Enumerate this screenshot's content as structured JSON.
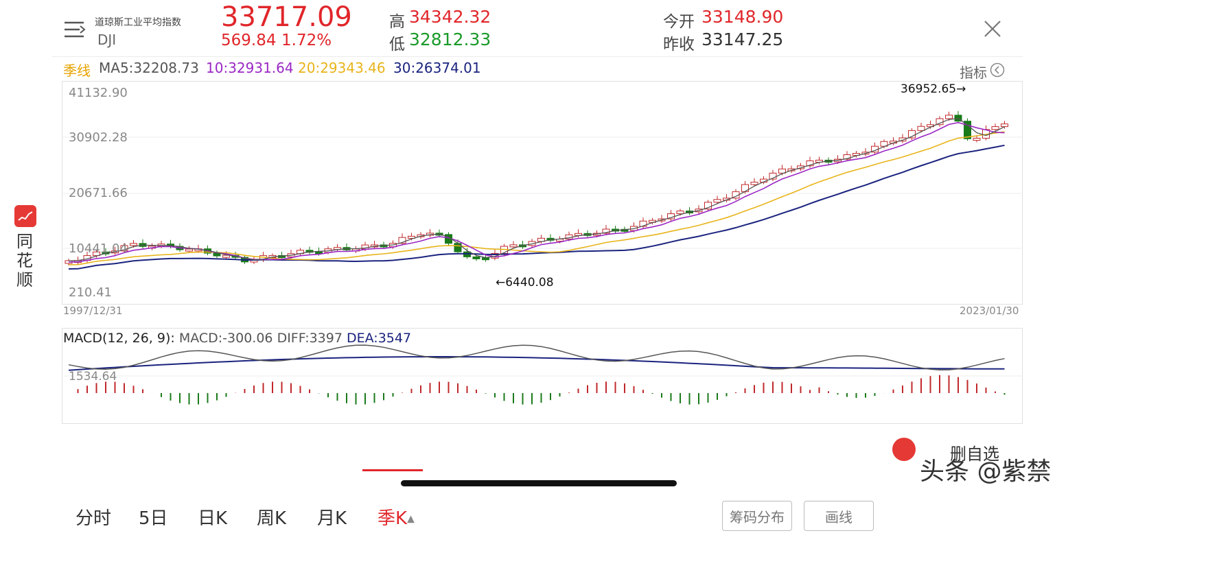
{
  "header": {
    "index_name": "道琼斯工业平均指数",
    "code": "DJI",
    "price": "33717.09",
    "change": "569.84",
    "change_pct": "1.72%",
    "high_label": "高",
    "high": "34342.32",
    "low_label": "低",
    "low": "32812.33",
    "open_label": "今开",
    "open": "33148.90",
    "prev_close_label": "昨收",
    "prev_close": "33147.25"
  },
  "ma_line": {
    "period": "季线",
    "ma5": "MA5:32208.73",
    "ma10": "10:32931.64",
    "ma20": "20:29343.46",
    "ma30": "30:26374.01",
    "indicator_label": "指标"
  },
  "kchart": {
    "y_ticks": [
      "41132.90",
      "30902.28",
      "20671.66",
      "10441.04",
      "210.41"
    ],
    "start_date": "1997/12/31",
    "end_date": "2023/01/30",
    "max_annotation": "36952.65→",
    "min_annotation": "←6440.08"
  },
  "macd": {
    "title": "MACD(12, 26, 9):",
    "macd": "MACD:-300.06",
    "diff": "DIFF:3397",
    "dea": "DEA:3547",
    "y_tick": "1534.64"
  },
  "sidebar": {
    "app_name": "同花顺"
  },
  "tabs": [
    "分时",
    "5日",
    "日K",
    "周K",
    "月K",
    "季K"
  ],
  "active_tab": "季K",
  "buttons": {
    "chips": "筹码分布",
    "draw": "画线",
    "remove_watch": "删自选"
  },
  "watermark": "头条 @紫禁",
  "colors": {
    "up": "#e0262a",
    "down": "#1a9a2a",
    "ma5": "#555555",
    "ma10": "#9b27c4",
    "ma20": "#e8b41a",
    "ma30": "#1a237e"
  }
}
